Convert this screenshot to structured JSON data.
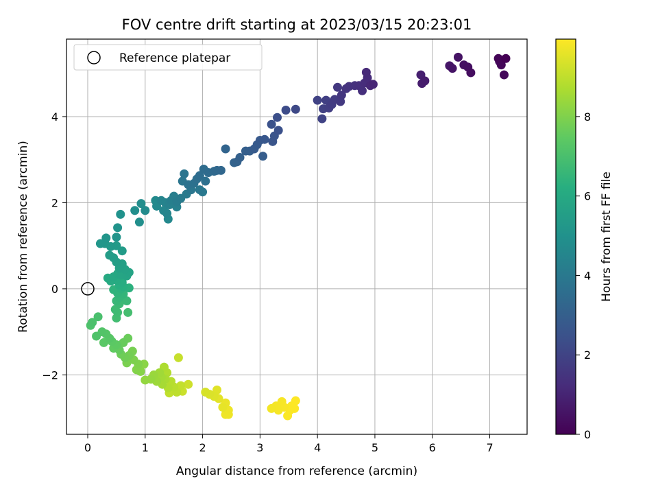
{
  "chart_data": {
    "type": "scatter",
    "title": "FOV centre drift starting at 2023/03/15 20:23:01",
    "xlabel": "Angular distance from reference (arcmin)",
    "ylabel": "Rotation from reference (arcmin)",
    "xlim": [
      -0.37,
      7.65
    ],
    "ylim": [
      -3.38,
      5.8
    ],
    "xticks": [
      0,
      1,
      2,
      3,
      4,
      5,
      6,
      7
    ],
    "yticks": [
      -2,
      0,
      2,
      4
    ],
    "grid": true,
    "legend": {
      "placement": "top-left",
      "entries": [
        "Reference platepar"
      ]
    },
    "reference_point": {
      "x": 0,
      "y": 0
    },
    "colorbar": {
      "label": "Hours from first FF file",
      "range": [
        0,
        9.95
      ],
      "ticks": [
        0,
        2,
        4,
        6,
        8
      ],
      "colormap": "viridis"
    },
    "series": [
      {
        "points": [
          {
            "x": 7.28,
            "y": 5.35,
            "t": 0.0
          },
          {
            "x": 7.15,
            "y": 5.35,
            "t": 0.1
          },
          {
            "x": 7.2,
            "y": 5.2,
            "t": 0.15
          },
          {
            "x": 7.25,
            "y": 4.97,
            "t": 0.2
          },
          {
            "x": 7.17,
            "y": 5.28,
            "t": 0.25
          },
          {
            "x": 6.67,
            "y": 5.02,
            "t": 0.35
          },
          {
            "x": 6.62,
            "y": 5.15,
            "t": 0.4
          },
          {
            "x": 6.55,
            "y": 5.2,
            "t": 0.45
          },
          {
            "x": 6.45,
            "y": 5.38,
            "t": 0.5
          },
          {
            "x": 6.35,
            "y": 5.12,
            "t": 0.55
          },
          {
            "x": 6.3,
            "y": 5.18,
            "t": 0.6
          },
          {
            "x": 5.87,
            "y": 4.83,
            "t": 0.75
          },
          {
            "x": 5.82,
            "y": 4.77,
            "t": 0.8
          },
          {
            "x": 5.8,
            "y": 4.97,
            "t": 0.85
          },
          {
            "x": 4.97,
            "y": 4.75,
            "t": 1.05
          },
          {
            "x": 4.92,
            "y": 4.72,
            "t": 1.1
          },
          {
            "x": 4.85,
            "y": 5.03,
            "t": 1.15
          },
          {
            "x": 4.87,
            "y": 4.9,
            "t": 1.2
          },
          {
            "x": 4.82,
            "y": 4.78,
            "t": 1.25
          },
          {
            "x": 4.78,
            "y": 4.6,
            "t": 1.3
          },
          {
            "x": 4.72,
            "y": 4.72,
            "t": 1.35
          },
          {
            "x": 4.65,
            "y": 4.72,
            "t": 1.4
          },
          {
            "x": 4.55,
            "y": 4.7,
            "t": 1.45
          },
          {
            "x": 4.5,
            "y": 4.65,
            "t": 1.5
          },
          {
            "x": 4.42,
            "y": 4.5,
            "t": 1.55
          },
          {
            "x": 4.35,
            "y": 4.68,
            "t": 1.6
          },
          {
            "x": 4.4,
            "y": 4.35,
            "t": 1.65
          },
          {
            "x": 4.3,
            "y": 4.4,
            "t": 1.7
          },
          {
            "x": 4.25,
            "y": 4.28,
            "t": 1.75
          },
          {
            "x": 4.2,
            "y": 4.2,
            "t": 1.8
          },
          {
            "x": 4.15,
            "y": 4.38,
            "t": 1.85
          },
          {
            "x": 4.1,
            "y": 4.18,
            "t": 1.9
          },
          {
            "x": 4.0,
            "y": 4.38,
            "t": 1.95
          },
          {
            "x": 4.08,
            "y": 3.95,
            "t": 2.0
          },
          {
            "x": 3.62,
            "y": 4.17,
            "t": 2.2
          },
          {
            "x": 3.45,
            "y": 4.15,
            "t": 2.3
          },
          {
            "x": 3.3,
            "y": 3.98,
            "t": 2.4
          },
          {
            "x": 3.32,
            "y": 3.68,
            "t": 2.45
          },
          {
            "x": 3.2,
            "y": 3.82,
            "t": 2.5
          },
          {
            "x": 3.25,
            "y": 3.55,
            "t": 2.55
          },
          {
            "x": 3.22,
            "y": 3.42,
            "t": 2.6
          },
          {
            "x": 3.08,
            "y": 3.47,
            "t": 2.7
          },
          {
            "x": 3.0,
            "y": 3.45,
            "t": 2.75
          },
          {
            "x": 2.95,
            "y": 3.35,
            "t": 2.8
          },
          {
            "x": 2.9,
            "y": 3.25,
            "t": 2.85
          },
          {
            "x": 3.05,
            "y": 3.08,
            "t": 2.9
          },
          {
            "x": 2.82,
            "y": 3.2,
            "t": 2.95
          },
          {
            "x": 2.75,
            "y": 3.2,
            "t": 3.0
          },
          {
            "x": 2.65,
            "y": 3.05,
            "t": 3.05
          },
          {
            "x": 2.6,
            "y": 2.95,
            "t": 3.1
          },
          {
            "x": 2.55,
            "y": 2.93,
            "t": 3.15
          },
          {
            "x": 2.4,
            "y": 3.25,
            "t": 3.2
          },
          {
            "x": 2.32,
            "y": 2.75,
            "t": 3.3
          },
          {
            "x": 2.25,
            "y": 2.75,
            "t": 3.35
          },
          {
            "x": 2.2,
            "y": 2.73,
            "t": 3.4
          },
          {
            "x": 2.1,
            "y": 2.7,
            "t": 3.45
          },
          {
            "x": 2.02,
            "y": 2.78,
            "t": 3.5
          },
          {
            "x": 1.95,
            "y": 2.63,
            "t": 3.55
          },
          {
            "x": 1.9,
            "y": 2.55,
            "t": 3.6
          },
          {
            "x": 2.05,
            "y": 2.5,
            "t": 3.65
          },
          {
            "x": 1.85,
            "y": 2.45,
            "t": 3.7
          },
          {
            "x": 1.75,
            "y": 2.42,
            "t": 3.75
          },
          {
            "x": 1.68,
            "y": 2.67,
            "t": 3.8
          },
          {
            "x": 1.65,
            "y": 2.5,
            "t": 3.85
          },
          {
            "x": 1.8,
            "y": 2.3,
            "t": 3.9
          },
          {
            "x": 1.95,
            "y": 2.3,
            "t": 3.95
          },
          {
            "x": 2.0,
            "y": 2.25,
            "t": 4.0
          },
          {
            "x": 1.72,
            "y": 2.2,
            "t": 4.05
          },
          {
            "x": 1.62,
            "y": 2.1,
            "t": 4.1
          },
          {
            "x": 1.55,
            "y": 2.02,
            "t": 4.15
          },
          {
            "x": 1.5,
            "y": 2.15,
            "t": 4.2
          },
          {
            "x": 1.45,
            "y": 2.05,
            "t": 4.25
          },
          {
            "x": 1.55,
            "y": 1.9,
            "t": 4.3
          },
          {
            "x": 1.42,
            "y": 1.95,
            "t": 4.35
          },
          {
            "x": 1.35,
            "y": 2.0,
            "t": 4.4
          },
          {
            "x": 1.28,
            "y": 2.05,
            "t": 4.45
          },
          {
            "x": 1.38,
            "y": 1.75,
            "t": 4.5
          },
          {
            "x": 1.32,
            "y": 1.82,
            "t": 4.55
          },
          {
            "x": 1.4,
            "y": 1.62,
            "t": 4.6
          },
          {
            "x": 1.2,
            "y": 1.92,
            "t": 4.65
          },
          {
            "x": 1.18,
            "y": 2.05,
            "t": 4.7
          },
          {
            "x": 1.0,
            "y": 1.82,
            "t": 4.75
          },
          {
            "x": 0.93,
            "y": 1.98,
            "t": 4.8
          },
          {
            "x": 0.82,
            "y": 1.82,
            "t": 4.85
          },
          {
            "x": 0.9,
            "y": 1.55,
            "t": 4.9
          },
          {
            "x": 0.57,
            "y": 1.73,
            "t": 5.0
          },
          {
            "x": 0.52,
            "y": 1.42,
            "t": 5.05
          },
          {
            "x": 0.5,
            "y": 1.2,
            "t": 5.1
          },
          {
            "x": 0.32,
            "y": 1.18,
            "t": 5.15
          },
          {
            "x": 0.22,
            "y": 1.05,
            "t": 5.2
          },
          {
            "x": 0.3,
            "y": 1.05,
            "t": 5.25
          },
          {
            "x": 0.4,
            "y": 0.98,
            "t": 5.3
          },
          {
            "x": 0.5,
            "y": 1.0,
            "t": 5.35
          },
          {
            "x": 0.6,
            "y": 0.88,
            "t": 5.4
          },
          {
            "x": 0.38,
            "y": 0.78,
            "t": 5.45
          },
          {
            "x": 0.45,
            "y": 0.72,
            "t": 5.5
          },
          {
            "x": 0.5,
            "y": 0.62,
            "t": 5.55
          },
          {
            "x": 0.6,
            "y": 0.58,
            "t": 5.6
          },
          {
            "x": 0.55,
            "y": 0.48,
            "t": 5.65
          },
          {
            "x": 0.65,
            "y": 0.45,
            "t": 5.7
          },
          {
            "x": 0.72,
            "y": 0.38,
            "t": 5.75
          },
          {
            "x": 0.68,
            "y": 0.3,
            "t": 5.8
          },
          {
            "x": 0.58,
            "y": 0.32,
            "t": 5.85
          },
          {
            "x": 0.52,
            "y": 0.35,
            "t": 5.9
          },
          {
            "x": 0.45,
            "y": 0.28,
            "t": 5.95
          },
          {
            "x": 0.35,
            "y": 0.25,
            "t": 6.0
          },
          {
            "x": 0.4,
            "y": 0.18,
            "t": 6.05
          },
          {
            "x": 0.5,
            "y": 0.2,
            "t": 6.1
          },
          {
            "x": 0.6,
            "y": 0.15,
            "t": 6.15
          },
          {
            "x": 0.55,
            "y": 0.08,
            "t": 6.2
          },
          {
            "x": 0.62,
            "y": 0.05,
            "t": 6.25
          },
          {
            "x": 0.72,
            "y": 0.02,
            "t": 6.3
          },
          {
            "x": 0.58,
            "y": 0.0,
            "t": 6.35
          },
          {
            "x": 0.45,
            "y": -0.02,
            "t": 6.4
          },
          {
            "x": 0.52,
            "y": -0.1,
            "t": 6.45
          },
          {
            "x": 0.62,
            "y": -0.12,
            "t": 6.5
          },
          {
            "x": 0.55,
            "y": -0.2,
            "t": 6.55
          },
          {
            "x": 0.5,
            "y": -0.28,
            "t": 6.6
          },
          {
            "x": 0.68,
            "y": -0.28,
            "t": 6.65
          },
          {
            "x": 0.55,
            "y": -0.35,
            "t": 6.7
          },
          {
            "x": 0.48,
            "y": -0.48,
            "t": 6.75
          },
          {
            "x": 0.52,
            "y": -0.55,
            "t": 6.8
          },
          {
            "x": 0.5,
            "y": -0.68,
            "t": 6.85
          },
          {
            "x": 0.7,
            "y": -0.55,
            "t": 6.9
          },
          {
            "x": 0.18,
            "y": -0.65,
            "t": 7.0
          },
          {
            "x": 0.08,
            "y": -0.78,
            "t": 7.05
          },
          {
            "x": 0.05,
            "y": -0.85,
            "t": 7.1
          },
          {
            "x": 0.15,
            "y": -1.1,
            "t": 7.15
          },
          {
            "x": 0.25,
            "y": -1.0,
            "t": 7.2
          },
          {
            "x": 0.32,
            "y": -1.05,
            "t": 7.25
          },
          {
            "x": 0.38,
            "y": -1.15,
            "t": 7.3
          },
          {
            "x": 0.28,
            "y": -1.25,
            "t": 7.35
          },
          {
            "x": 0.42,
            "y": -1.22,
            "t": 7.4
          },
          {
            "x": 0.5,
            "y": -1.3,
            "t": 7.45
          },
          {
            "x": 0.45,
            "y": -1.38,
            "t": 7.5
          },
          {
            "x": 0.55,
            "y": -1.42,
            "t": 7.55
          },
          {
            "x": 0.62,
            "y": -1.25,
            "t": 7.6
          },
          {
            "x": 0.7,
            "y": -1.15,
            "t": 7.65
          },
          {
            "x": 0.58,
            "y": -1.52,
            "t": 7.7
          },
          {
            "x": 0.65,
            "y": -1.6,
            "t": 7.75
          },
          {
            "x": 0.72,
            "y": -1.55,
            "t": 7.8
          },
          {
            "x": 0.78,
            "y": -1.45,
            "t": 7.85
          },
          {
            "x": 0.68,
            "y": -1.72,
            "t": 7.9
          },
          {
            "x": 0.8,
            "y": -1.65,
            "t": 7.95
          },
          {
            "x": 0.88,
            "y": -1.75,
            "t": 8.0
          },
          {
            "x": 0.85,
            "y": -1.88,
            "t": 8.05
          },
          {
            "x": 0.92,
            "y": -1.92,
            "t": 8.1
          },
          {
            "x": 0.98,
            "y": -1.75,
            "t": 8.15
          },
          {
            "x": 1.0,
            "y": -2.12,
            "t": 8.3
          },
          {
            "x": 1.1,
            "y": -2.1,
            "t": 8.35
          },
          {
            "x": 1.15,
            "y": -2.0,
            "t": 8.4
          },
          {
            "x": 1.2,
            "y": -2.15,
            "t": 8.45
          },
          {
            "x": 1.25,
            "y": -1.95,
            "t": 8.5
          },
          {
            "x": 1.28,
            "y": -2.05,
            "t": 8.55
          },
          {
            "x": 1.3,
            "y": -2.22,
            "t": 8.6
          },
          {
            "x": 1.35,
            "y": -2.1,
            "t": 8.65
          },
          {
            "x": 1.33,
            "y": -1.82,
            "t": 8.7
          },
          {
            "x": 1.38,
            "y": -1.95,
            "t": 8.75
          },
          {
            "x": 1.4,
            "y": -2.3,
            "t": 8.8
          },
          {
            "x": 1.45,
            "y": -2.15,
            "t": 8.85
          },
          {
            "x": 1.5,
            "y": -2.28,
            "t": 8.9
          },
          {
            "x": 1.55,
            "y": -2.4,
            "t": 8.95
          },
          {
            "x": 1.42,
            "y": -2.42,
            "t": 9.0
          },
          {
            "x": 1.62,
            "y": -2.25,
            "t": 9.05
          },
          {
            "x": 1.58,
            "y": -1.6,
            "t": 9.1
          },
          {
            "x": 1.65,
            "y": -2.38,
            "t": 9.15
          },
          {
            "x": 1.75,
            "y": -2.22,
            "t": 9.2
          },
          {
            "x": 2.05,
            "y": -2.4,
            "t": 9.35
          },
          {
            "x": 2.12,
            "y": -2.45,
            "t": 9.4
          },
          {
            "x": 2.2,
            "y": -2.5,
            "t": 9.45
          },
          {
            "x": 2.25,
            "y": -2.35,
            "t": 9.5
          },
          {
            "x": 2.28,
            "y": -2.55,
            "t": 9.55
          },
          {
            "x": 2.35,
            "y": -2.75,
            "t": 9.6
          },
          {
            "x": 2.4,
            "y": -2.65,
            "t": 9.65
          },
          {
            "x": 2.45,
            "y": -2.82,
            "t": 9.7
          },
          {
            "x": 2.4,
            "y": -2.92,
            "t": 9.72
          },
          {
            "x": 2.45,
            "y": -2.92,
            "t": 9.74
          },
          {
            "x": 3.2,
            "y": -2.78,
            "t": 9.8
          },
          {
            "x": 3.28,
            "y": -2.72,
            "t": 9.82
          },
          {
            "x": 3.32,
            "y": -2.82,
            "t": 9.84
          },
          {
            "x": 3.38,
            "y": -2.62,
            "t": 9.86
          },
          {
            "x": 3.42,
            "y": -2.75,
            "t": 9.88
          },
          {
            "x": 3.48,
            "y": -2.95,
            "t": 9.9
          },
          {
            "x": 3.52,
            "y": -2.82,
            "t": 9.92
          },
          {
            "x": 3.55,
            "y": -2.72,
            "t": 9.93
          },
          {
            "x": 3.6,
            "y": -2.78,
            "t": 9.94
          },
          {
            "x": 3.62,
            "y": -2.6,
            "t": 9.95
          }
        ]
      }
    ]
  }
}
